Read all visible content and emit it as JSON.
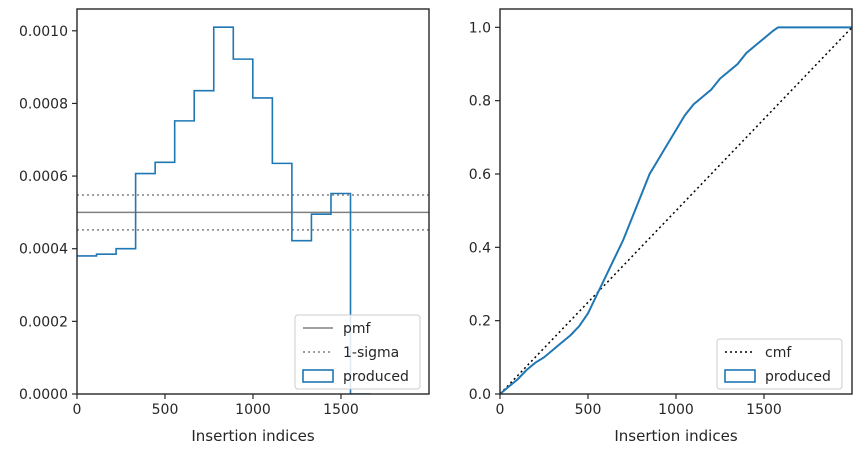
{
  "chart_data": [
    {
      "type": "histogram",
      "xlabel": "Insertion indices",
      "ylabel": "",
      "xlim": [
        0,
        2000
      ],
      "ylim": [
        0,
        0.00106
      ],
      "xticks": [
        "0",
        "500",
        "1000",
        "1500"
      ],
      "xtick_values": [
        0,
        500,
        1000,
        1500
      ],
      "yticks": [
        "0.0000",
        "0.0002",
        "0.0004",
        "0.0006",
        "0.0008",
        "0.0010"
      ],
      "ytick_values": [
        0,
        0.0002,
        0.0004,
        0.0006,
        0.0008,
        0.001
      ],
      "legend_position": "lower-right",
      "series": [
        {
          "name": "pmf",
          "style": "solid",
          "color": "#808080",
          "y": 0.0005
        },
        {
          "name": "1-sigma",
          "style": "dotted",
          "color": "#808080",
          "y_values": [
            0.000548,
            0.000452
          ]
        },
        {
          "name": "produced",
          "style": "step",
          "color": "#1f77b4",
          "bin_edges": [
            0,
            111,
            222,
            333,
            444,
            555,
            666,
            777,
            888,
            999,
            1110,
            1221,
            1332,
            1443,
            1554,
            1665
          ],
          "values": [
            0.00038,
            0.000385,
            0.0004,
            0.000607,
            0.000638,
            0.000752,
            0.000835,
            0.00101,
            0.000922,
            0.000815,
            0.000635,
            0.000422,
            0.000495,
            0.000552,
            0.0
          ]
        }
      ]
    },
    {
      "type": "line",
      "xlabel": "Insertion indices",
      "ylabel": "",
      "xlim": [
        0,
        2000
      ],
      "ylim": [
        0,
        1.05
      ],
      "xticks": [
        "0",
        "500",
        "1000",
        "1500"
      ],
      "xtick_values": [
        0,
        500,
        1000,
        1500
      ],
      "yticks": [
        "0.0",
        "0.2",
        "0.4",
        "0.6",
        "0.8",
        "1.0"
      ],
      "ytick_values": [
        0,
        0.2,
        0.4,
        0.6,
        0.8,
        1.0
      ],
      "legend_position": "lower-right",
      "series": [
        {
          "name": "cmf",
          "style": "dotted",
          "color": "#000000",
          "x": [
            0,
            2000
          ],
          "y": [
            0,
            1.0
          ]
        },
        {
          "name": "produced",
          "style": "step",
          "color": "#1f77b4",
          "x": [
            0,
            50,
            100,
            150,
            200,
            250,
            300,
            350,
            400,
            450,
            500,
            550,
            600,
            650,
            700,
            750,
            800,
            850,
            900,
            950,
            1000,
            1050,
            1100,
            1150,
            1200,
            1250,
            1300,
            1350,
            1400,
            1450,
            1500,
            1550,
            1580,
            1600,
            1700,
            1800,
            1900,
            2000
          ],
          "y": [
            0,
            0.02,
            0.04,
            0.065,
            0.085,
            0.1,
            0.12,
            0.14,
            0.16,
            0.185,
            0.22,
            0.27,
            0.32,
            0.37,
            0.42,
            0.48,
            0.54,
            0.6,
            0.64,
            0.68,
            0.72,
            0.76,
            0.79,
            0.81,
            0.83,
            0.86,
            0.88,
            0.9,
            0.93,
            0.95,
            0.97,
            0.99,
            1.0,
            1.0,
            1.0,
            1.0,
            1.0,
            1.0
          ]
        }
      ]
    }
  ]
}
